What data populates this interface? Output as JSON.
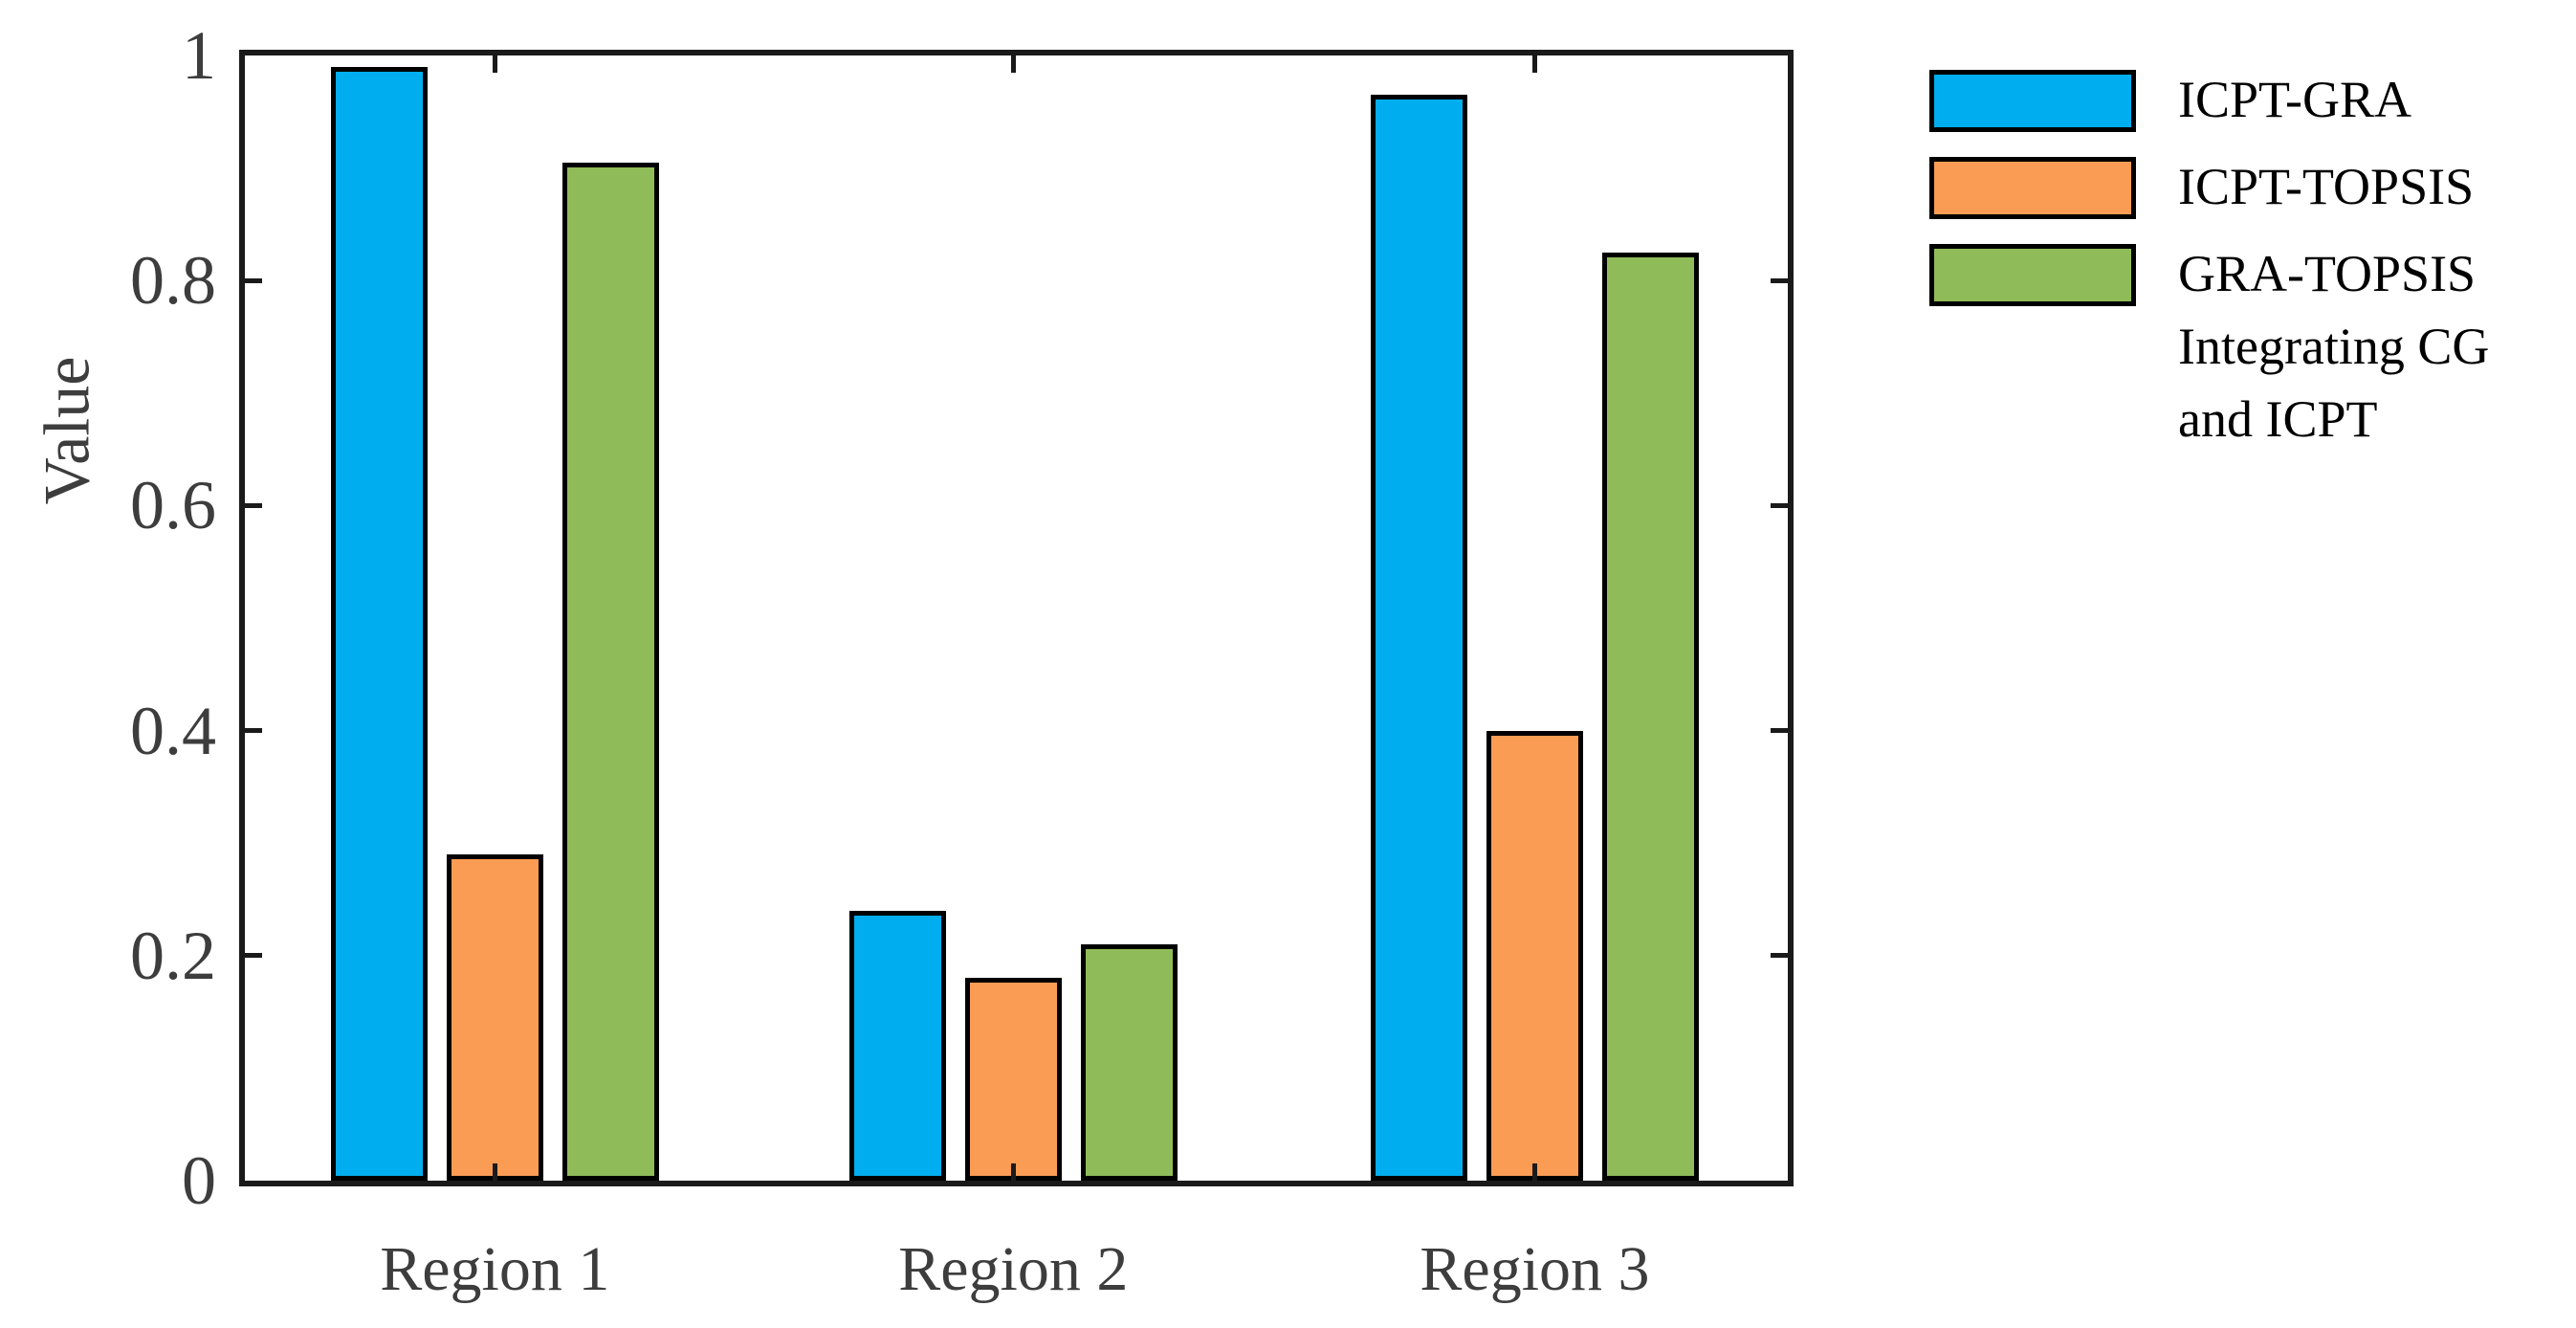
{
  "chart_data": {
    "type": "bar",
    "title": "",
    "xlabel": "",
    "ylabel": "Value",
    "categories": [
      "Region 1",
      "Region 2",
      "Region 3"
    ],
    "series": [
      {
        "name": "ICPT-GRA",
        "legend_lines": [
          "ICPT-GRA"
        ],
        "color": "#00AEEF",
        "values": [
          0.99,
          0.24,
          0.965
        ]
      },
      {
        "name": "ICPT-TOPSIS",
        "legend_lines": [
          "ICPT-TOPSIS"
        ],
        "color": "#FB9C54",
        "values": [
          0.29,
          0.18,
          0.4
        ]
      },
      {
        "name": "GRA-TOPSIS Integrating CG and ICPT",
        "legend_lines": [
          "GRA-TOPSIS",
          "Integrating CG",
          "and ICPT"
        ],
        "color": "#8FBC59",
        "values": [
          0.905,
          0.21,
          0.825
        ]
      }
    ],
    "ylim": [
      0,
      1
    ],
    "yticks": [
      "0",
      "0.2",
      "0.4",
      "0.6",
      "0.8",
      "1"
    ],
    "inner_ytick_values": [
      0.2,
      0.4,
      0.6,
      0.8
    ],
    "legend_position": "right-top",
    "grid": false,
    "bar_edge_color": "#000000",
    "axis_color": "#1a1a1a",
    "tick_label_color": "#3d3d3d",
    "legend_text_color": "#000000"
  }
}
